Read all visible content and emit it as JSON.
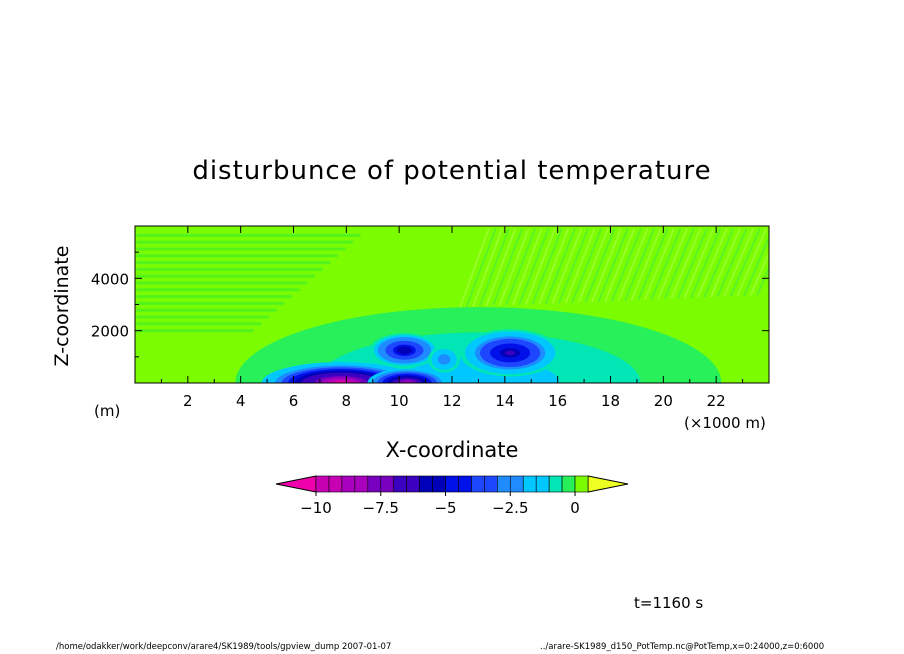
{
  "chart_data": {
    "type": "heatmap",
    "title": "disturbunce of potential temperature",
    "xlabel": "X-coordinate",
    "ylabel": "Z-coordinate",
    "x_unit": "(×1000 m)",
    "y_unit": "(m)",
    "xlim": [
      0,
      24
    ],
    "ylim": [
      0,
      6000
    ],
    "x_ticks": [
      2,
      4,
      6,
      8,
      10,
      12,
      14,
      16,
      18,
      20,
      22
    ],
    "y_ticks": [
      2000,
      4000
    ],
    "x_tick_labels": [
      "2",
      "4",
      "6",
      "8",
      "10",
      "12",
      "14",
      "16",
      "18",
      "20",
      "22"
    ],
    "y_tick_labels": [
      "2000",
      "4000"
    ],
    "colorbar": {
      "min": -11,
      "max": 0.5,
      "step": 0.5,
      "extend": "both",
      "tick_values": [
        -10,
        -7.5,
        -5,
        -2.5,
        0
      ],
      "tick_labels": [
        "−10",
        "−7.5",
        "−5",
        "−2.5",
        "0"
      ]
    },
    "background_value": 0,
    "features": [
      {
        "kind": "cold pool",
        "x_range": [
          5.2,
          10.5
        ],
        "z_top": 700,
        "min_value": -10
      },
      {
        "kind": "cold vortex",
        "x_center": 10.2,
        "z_center": 1250,
        "min_value": -5.5
      },
      {
        "kind": "cold vortex",
        "x_center": 14.2,
        "z_center": 1150,
        "min_value": -6
      }
    ],
    "annotation": "t=1160 s"
  },
  "footer": {
    "left": "/home/odakker/work/deepconv/arare4/SK1989/tools/gpview_dump   2007-01-07",
    "right": "../arare-SK1989_d150_PotTemp.nc@PotTemp,x=0:24000,z=0:6000"
  },
  "colors": {
    "background_field": "#7cfc00",
    "upper_extend": "#eeff22",
    "lower_extend": "#ee00aa"
  }
}
